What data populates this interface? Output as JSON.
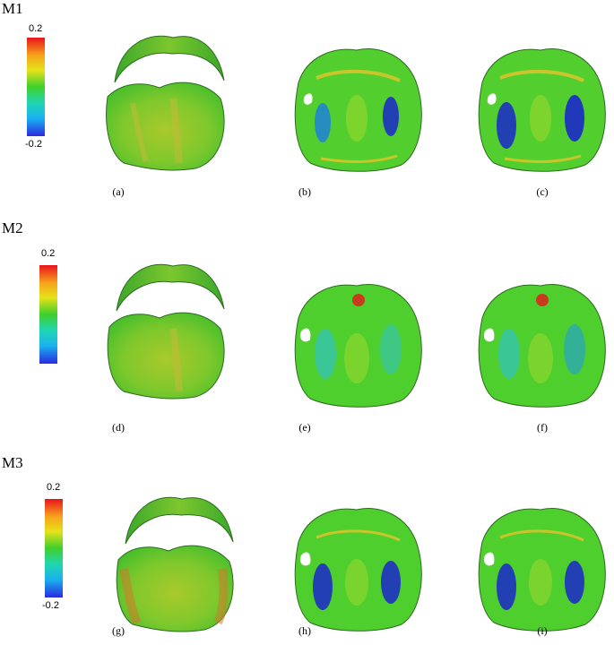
{
  "rows": [
    {
      "label": "M1",
      "colorbar": {
        "max": "0.2",
        "min": "-0.2"
      },
      "captions": [
        "(a)",
        "(b)",
        "(c)"
      ]
    },
    {
      "label": "M2",
      "colorbar": {
        "max": "0.2",
        "min": ""
      },
      "captions": [
        "(d)",
        "(e)",
        "(f)"
      ]
    },
    {
      "label": "M3",
      "colorbar": {
        "max": "0.2",
        "min": "-0.2"
      },
      "captions": [
        "(g)",
        "(h)",
        "(i)"
      ]
    }
  ],
  "colorbar_colors": [
    "#e8141b",
    "#f7a31b",
    "#e6e21a",
    "#3fcf2b",
    "#20d6b0",
    "#1ab1f0",
    "#2a2ae0"
  ],
  "panel_colors": {
    "surface": "#4cd02e",
    "warm": "#c9c52a",
    "cool": "#1f9be0",
    "deep": "#1d2fc2",
    "edge": "#2c6b1f"
  },
  "panel_types": [
    "arch",
    "palate-mild",
    "palate-strong"
  ]
}
